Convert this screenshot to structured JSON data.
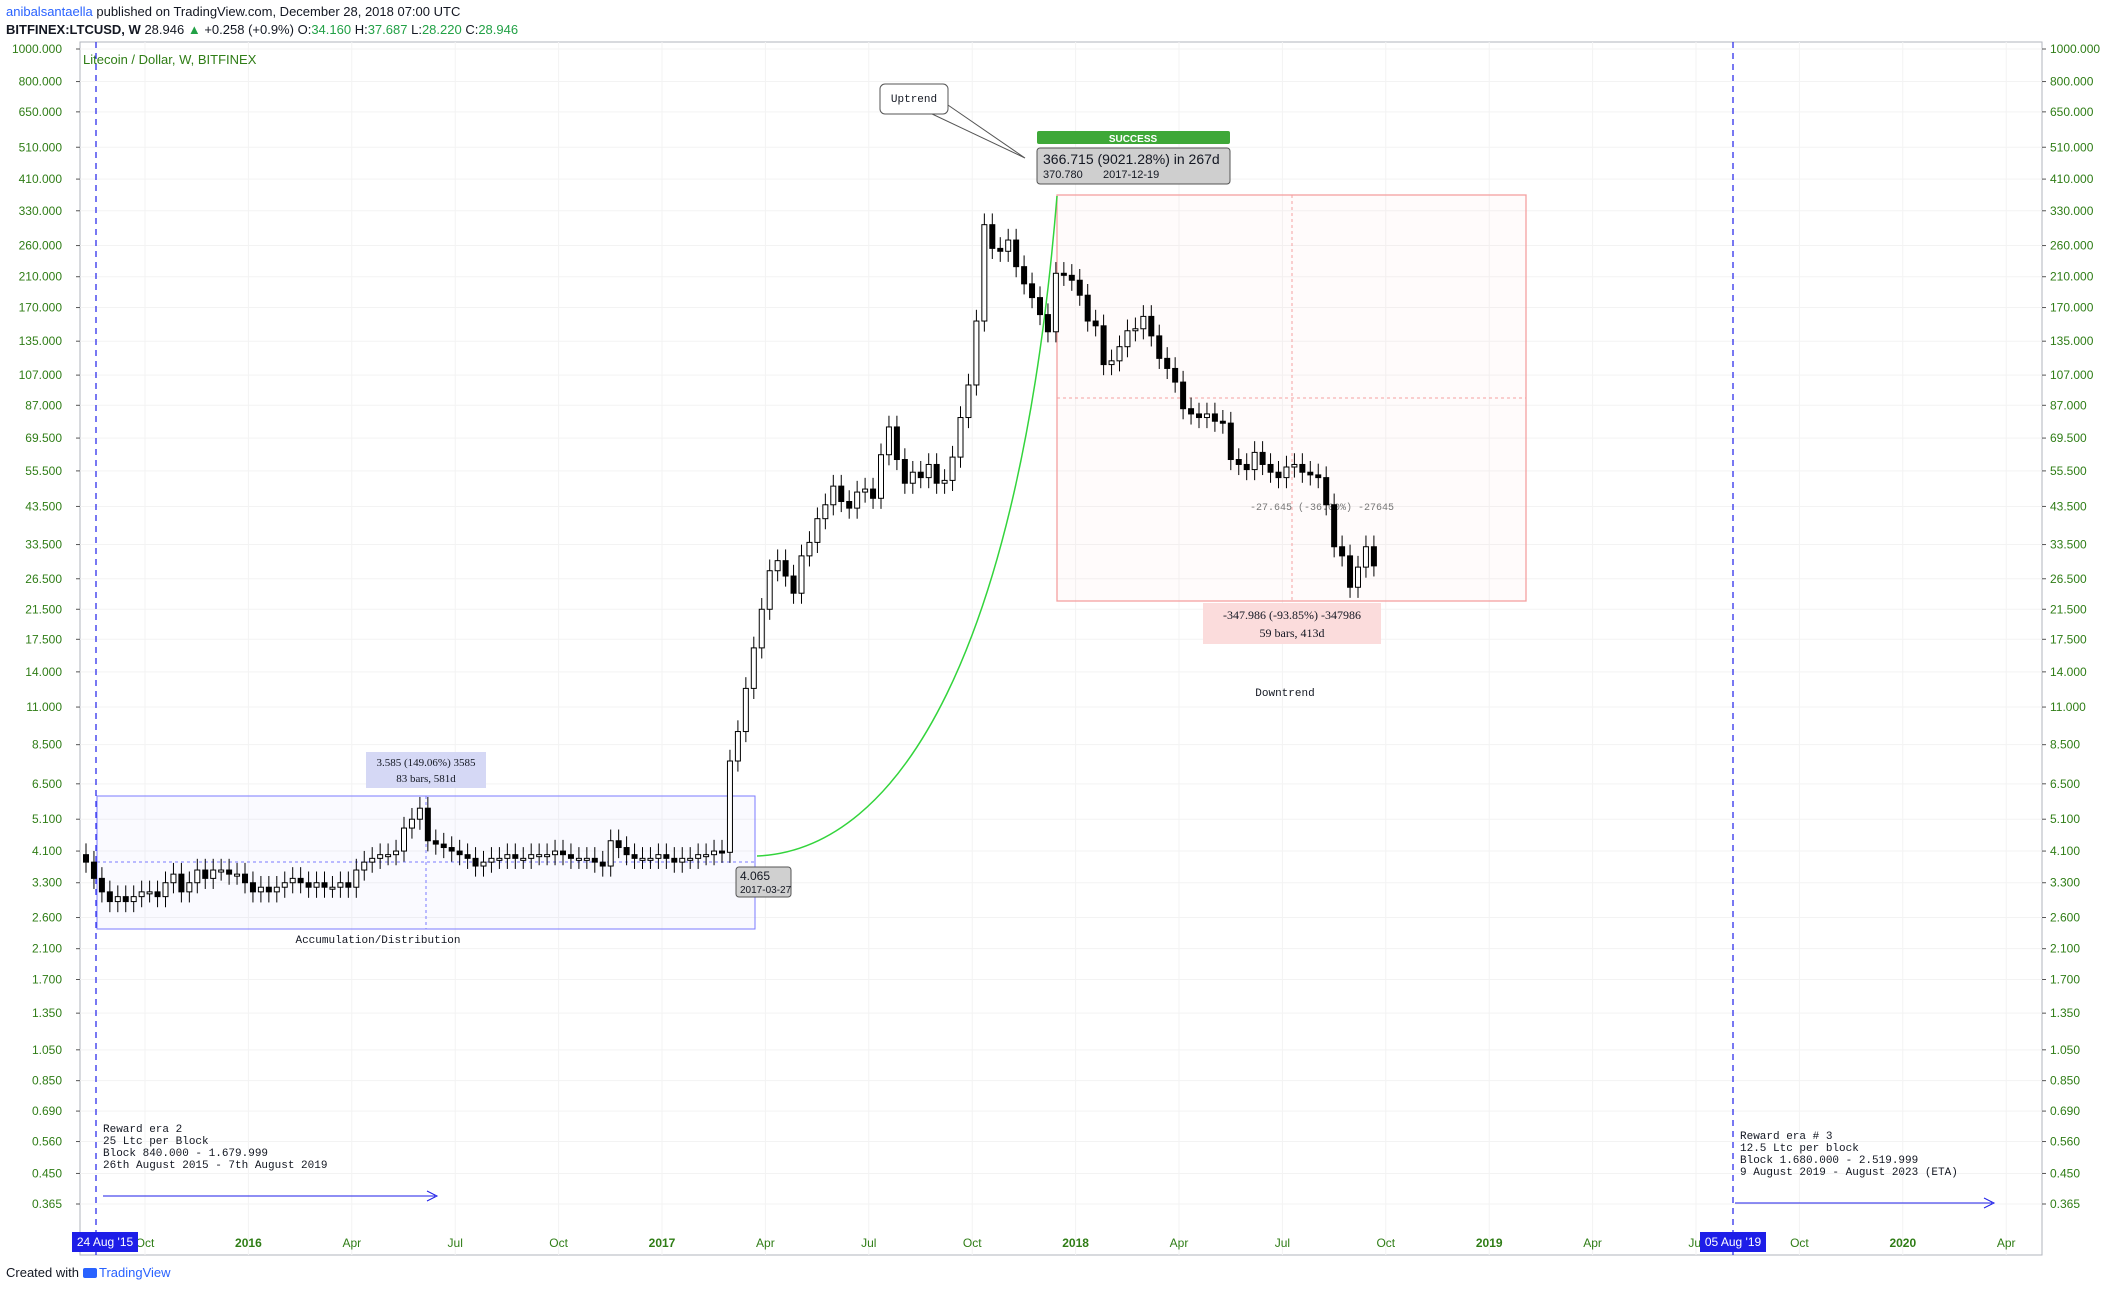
{
  "header": {
    "author": "anibalsantaella",
    "published": "published on TradingView.com, December 28, 2018 07:00 UTC",
    "symbol": "BITFINEX:LTCUSD, W",
    "last": "28.946",
    "change": "+0.258 (+0.9%)",
    "o_label": "O:",
    "o_val": "34.160",
    "h_label": "H:",
    "h_val": "37.687",
    "l_label": "L:",
    "l_val": "28.220",
    "c_label": "C:",
    "c_val": "28.946"
  },
  "footer": {
    "created": "Created with",
    "brand": "TradingView"
  },
  "colors": {
    "axis_text": "#2f7d16",
    "grid": "#e6e6e6",
    "up": "#ffffff",
    "down": "#000000",
    "accent_blue": "#1e1ee8",
    "green_curve": "#33d43c",
    "red_box": "#f4a0a0"
  },
  "chart_data": {
    "type": "candlestick",
    "title": "Litecoin / Dollar, W, BITFINEX",
    "yscale": "log",
    "yticks": [
      "1000.000",
      "800.000",
      "650.000",
      "510.000",
      "410.000",
      "330.000",
      "260.000",
      "210.000",
      "170.000",
      "135.000",
      "107.000",
      "87.000",
      "69.500",
      "55.500",
      "43.500",
      "33.500",
      "26.500",
      "21.500",
      "17.500",
      "14.000",
      "11.000",
      "8.500",
      "6.500",
      "5.100",
      "4.100",
      "3.300",
      "2.600",
      "2.100",
      "1.700",
      "1.350",
      "1.050",
      "0.850",
      "0.690",
      "0.560",
      "0.450",
      "0.365"
    ],
    "xticks": [
      "Oct",
      "2016",
      "Apr",
      "Jul",
      "Oct",
      "2017",
      "Apr",
      "Jul",
      "Oct",
      "2018",
      "Apr",
      "Jul",
      "Oct",
      "2019",
      "Apr",
      "Jul",
      "Oct",
      "2020",
      "Apr"
    ],
    "xtick_bold": [
      "2016",
      "2017",
      "2018",
      "2019",
      "2020"
    ],
    "marker_left": "24 Aug '15",
    "marker_right": "05 Aug '19",
    "annotations": {
      "uptrend": "Uptrend",
      "success": "SUCCESS",
      "peak_measure": "366.715 (9021.28%) in 267d",
      "peak_price": "370.780",
      "peak_date": "2017-12-19",
      "start_price": "4.065",
      "start_date": "2017-03-27",
      "range_line1": "3.585 (149.06%) 3585",
      "range_line2": "83 bars, 581d",
      "accum": "Accumulation/Distribution",
      "down_line1": "-347.986 (-93.85%) -347986",
      "down_line2": "59 bars, 413d",
      "downtrend": "Downtrend",
      "mid_measure": "-27.645 (-36.00%) -27645",
      "era2": [
        "Reward era 2",
        "25 Ltc per Block",
        "Block 840.000 - 1.679.999",
        "26th August 2015 - 7th August 2019"
      ],
      "era3": [
        "Reward era # 3",
        "12.5 Ltc per block",
        "Block 1.680.000 - 2.519.999",
        "9 August 2019 - August 2023 (ETA)"
      ]
    },
    "series_close": [
      3.8,
      3.4,
      3.1,
      2.9,
      3.0,
      2.9,
      3.0,
      3.1,
      3.1,
      3.0,
      3.3,
      3.5,
      3.1,
      3.3,
      3.6,
      3.4,
      3.6,
      3.6,
      3.5,
      3.5,
      3.3,
      3.1,
      3.2,
      3.1,
      3.2,
      3.3,
      3.4,
      3.3,
      3.2,
      3.3,
      3.2,
      3.2,
      3.3,
      3.2,
      3.6,
      3.8,
      3.9,
      4.0,
      4.0,
      4.1,
      4.8,
      5.1,
      5.5,
      4.4,
      4.3,
      4.2,
      4.1,
      4.0,
      3.9,
      3.7,
      3.8,
      3.9,
      3.9,
      4.0,
      3.9,
      3.9,
      4.0,
      4.0,
      4.0,
      4.1,
      4.0,
      3.9,
      3.9,
      3.9,
      3.8,
      3.7,
      4.4,
      4.2,
      4.0,
      3.9,
      3.9,
      3.9,
      4.0,
      3.9,
      3.8,
      3.9,
      3.9,
      4.0,
      4.0,
      4.1,
      4.065,
      7.6,
      9.3,
      12.5,
      16.5,
      21.5,
      28.0,
      30.0,
      27.0,
      24.0,
      31.0,
      34.0,
      40.0,
      44.0,
      50.0,
      45.0,
      43.0,
      48.0,
      49.0,
      46.0,
      62.0,
      75.0,
      60.0,
      51.0,
      55.0,
      53.0,
      58.0,
      51.0,
      52.0,
      61.0,
      80.0,
      100.0,
      155.0,
      300.0,
      255.0,
      250.0,
      270.0,
      225.0,
      200.0,
      182.0,
      162.0,
      144.0,
      215.0,
      212.0,
      205.0,
      185.0,
      155.0,
      150.0,
      115.0,
      118.0,
      130.0,
      145.0,
      147.0,
      160.0,
      140.0,
      120.0,
      112.0,
      102.0,
      85.0,
      82.0,
      80.0,
      82.0,
      78.0,
      77.0,
      60.0,
      58.0,
      56.0,
      63.0,
      58.0,
      55.0,
      53.0,
      57.0,
      58.0,
      55.0,
      54.0,
      53.0,
      44.0,
      33.0,
      31.0,
      25.0,
      28.7,
      33.0,
      28.946
    ]
  }
}
